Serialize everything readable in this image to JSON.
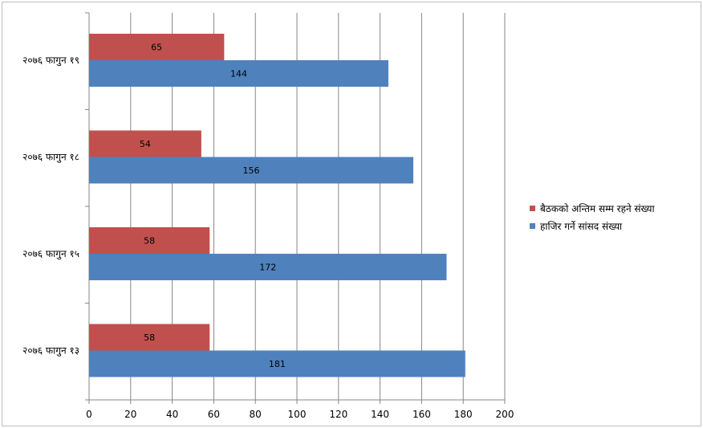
{
  "chart_data": {
    "type": "bar",
    "orientation": "horizontal",
    "categories": [
      "२०७६ फागुन १९",
      "२०७६ फागुन १८",
      "२०७६ फागुन १५",
      "२०७६ फागुन १३"
    ],
    "series": [
      {
        "name": "बैठकको अन्तिम सम्म रहने संख्या",
        "values": [
          65,
          54,
          58,
          58
        ],
        "color": "#c0504d"
      },
      {
        "name": "हाजिर गर्ने सांसद संख्या",
        "values": [
          144,
          156,
          172,
          181
        ],
        "color": "#4f81bd"
      }
    ],
    "xlim": [
      0,
      200
    ],
    "xticks": [
      "0",
      "20",
      "40",
      "60",
      "80",
      "100",
      "120",
      "140",
      "160",
      "180",
      "200"
    ],
    "grid": "vertical",
    "data_labels": true,
    "legend_position": "right"
  }
}
